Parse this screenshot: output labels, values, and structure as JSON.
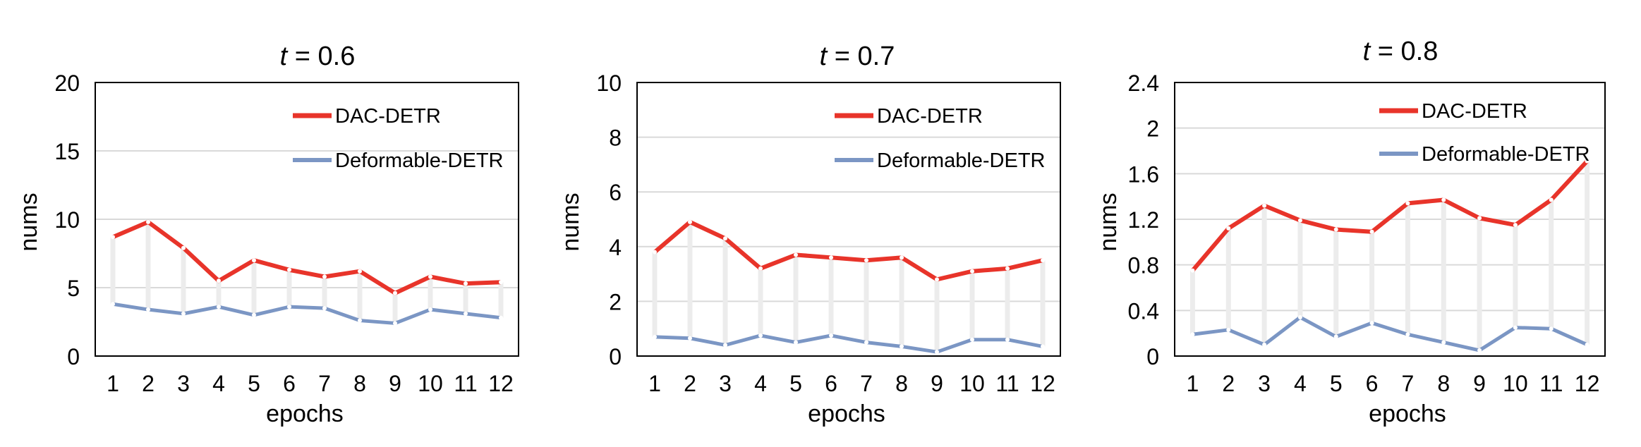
{
  "colors": {
    "dac": "#e8342a",
    "deformable": "#7b96c4",
    "connector": "#ececec",
    "grid": "#d9d9d9",
    "frame": "#000000"
  },
  "chart_data": [
    {
      "type": "line",
      "title_var": "t",
      "title_rest": " = 0.6",
      "xlabel": "epochs",
      "ylabel": "nums",
      "categories": [
        "1",
        "2",
        "3",
        "4",
        "5",
        "6",
        "7",
        "8",
        "9",
        "10",
        "11",
        "12"
      ],
      "ylim": [
        0,
        20
      ],
      "yticks": [
        "0",
        "5",
        "10",
        "15",
        "20"
      ],
      "ytick_values": [
        0,
        5,
        10,
        15,
        20
      ],
      "grid": true,
      "legend": "top-right",
      "series": [
        {
          "name": "DAC-DETR",
          "color_key": "dac",
          "values": [
            8.7,
            9.8,
            7.9,
            5.5,
            7.0,
            6.3,
            5.8,
            6.2,
            4.6,
            5.8,
            5.3,
            5.4
          ]
        },
        {
          "name": "Deformable-DETR",
          "color_key": "deformable",
          "values": [
            3.8,
            3.4,
            3.1,
            3.6,
            3.0,
            3.6,
            3.5,
            2.6,
            2.4,
            3.4,
            3.1,
            2.8
          ]
        }
      ]
    },
    {
      "type": "line",
      "title_var": "t",
      "title_rest": " = 0.7",
      "xlabel": "epochs",
      "ylabel": "nums",
      "categories": [
        "1",
        "2",
        "3",
        "4",
        "5",
        "6",
        "7",
        "8",
        "9",
        "10",
        "11",
        "12"
      ],
      "ylim": [
        0,
        10
      ],
      "yticks": [
        "0",
        "2",
        "4",
        "6",
        "8",
        "10"
      ],
      "ytick_values": [
        0,
        2,
        4,
        6,
        8,
        10
      ],
      "grid": true,
      "legend": "top-right",
      "series": [
        {
          "name": "DAC-DETR",
          "color_key": "dac",
          "values": [
            3.8,
            4.9,
            4.3,
            3.2,
            3.7,
            3.6,
            3.5,
            3.6,
            2.8,
            3.1,
            3.2,
            3.5
          ]
        },
        {
          "name": "Deformable-DETR",
          "color_key": "deformable",
          "values": [
            0.7,
            0.65,
            0.4,
            0.75,
            0.5,
            0.75,
            0.5,
            0.35,
            0.15,
            0.6,
            0.6,
            0.35
          ]
        }
      ]
    },
    {
      "type": "line",
      "title_var": "t",
      "title_rest": " = 0.8",
      "xlabel": "epochs",
      "ylabel": "nums",
      "categories": [
        "1",
        "2",
        "3",
        "4",
        "5",
        "6",
        "7",
        "8",
        "9",
        "10",
        "11",
        "12"
      ],
      "ylim": [
        0,
        2.4
      ],
      "yticks": [
        "0",
        "0.4",
        "0.8",
        "1.2",
        "1.6",
        "2",
        "2.4"
      ],
      "ytick_values": [
        0,
        0.4,
        0.8,
        1.2,
        1.6,
        2.0,
        2.4
      ],
      "grid": true,
      "legend": "top-right",
      "series": [
        {
          "name": "DAC-DETR",
          "color_key": "dac",
          "values": [
            0.75,
            1.12,
            1.32,
            1.19,
            1.11,
            1.09,
            1.34,
            1.37,
            1.21,
            1.15,
            1.37,
            1.71
          ]
        },
        {
          "name": "Deformable-DETR",
          "color_key": "deformable",
          "values": [
            0.19,
            0.23,
            0.1,
            0.34,
            0.17,
            0.29,
            0.19,
            0.12,
            0.05,
            0.25,
            0.24,
            0.1
          ]
        }
      ]
    }
  ]
}
